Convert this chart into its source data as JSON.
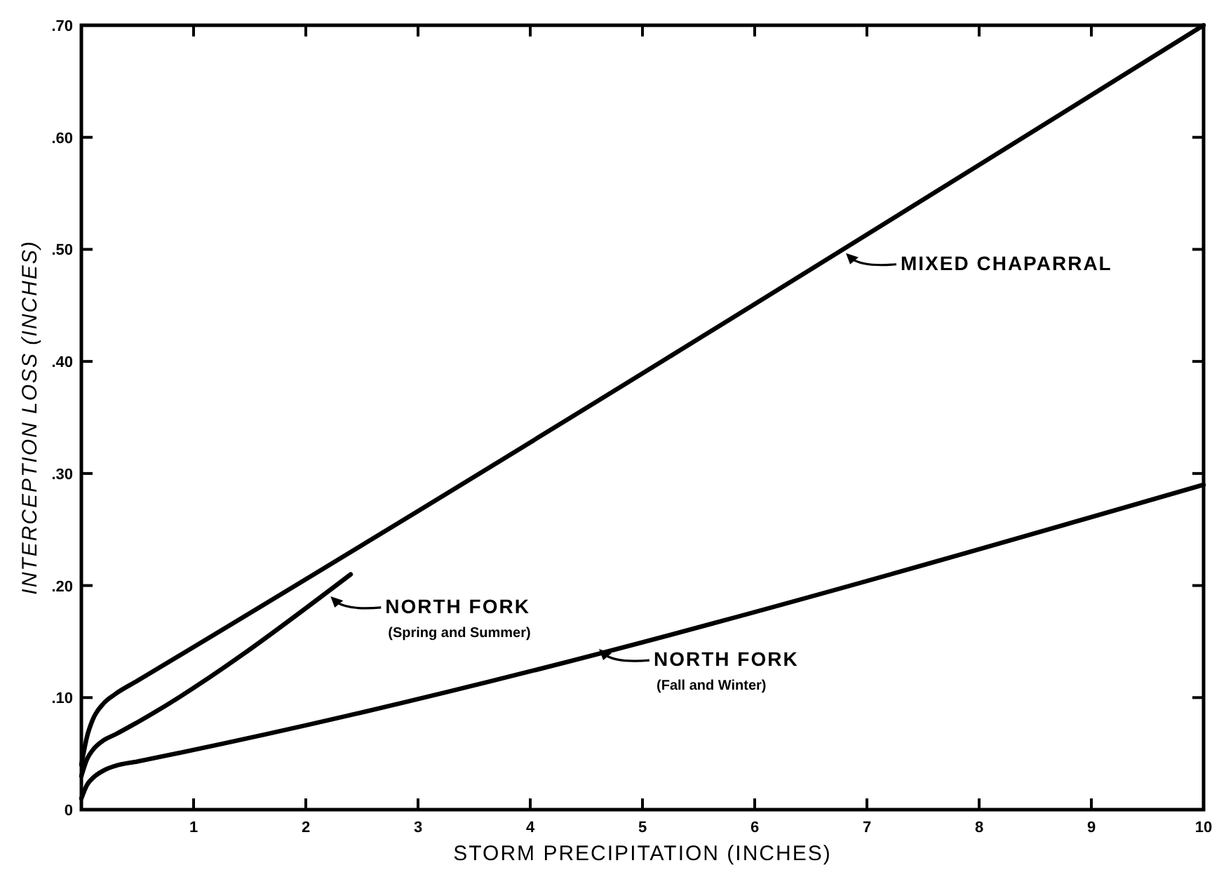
{
  "chart_data": {
    "type": "line",
    "xlabel": "STORM PRECIPITATION (INCHES)",
    "ylabel": "INTERCEPTION LOSS (INCHES)",
    "xlim": [
      0,
      10
    ],
    "ylim": [
      0,
      0.7
    ],
    "xticks": [
      1,
      2,
      3,
      4,
      5,
      6,
      7,
      8,
      9,
      10
    ],
    "yticks": [
      {
        "value": 0,
        "label": "0"
      },
      {
        "value": 0.1,
        "label": ".10"
      },
      {
        "value": 0.2,
        "label": ".20"
      },
      {
        "value": 0.3,
        "label": ".30"
      },
      {
        "value": 0.4,
        "label": ".40"
      },
      {
        "value": 0.5,
        "label": ".50"
      },
      {
        "value": 0.6,
        "label": ".60"
      },
      {
        "value": 0.7,
        "label": ".70"
      }
    ],
    "grid": false,
    "legend": "right",
    "line_style": "solid",
    "series": [
      {
        "name": "MIXED CHAPARRAL",
        "color": "#000000",
        "x": [
          0,
          0.05,
          0.1,
          0.2,
          0.3,
          0.5,
          10
        ],
        "values": [
          0.04,
          0.065,
          0.08,
          0.095,
          0.103,
          0.115,
          0.7
        ]
      },
      {
        "name": "NORTH FORK (Spring and Summer)",
        "color": "#000000",
        "x": [
          0,
          0.05,
          0.1,
          0.2,
          0.3,
          0.5,
          2.4
        ],
        "values": [
          0.03,
          0.045,
          0.053,
          0.062,
          0.067,
          0.078,
          0.21
        ]
      },
      {
        "name": "NORTH FORK (Fall and Winter)",
        "color": "#000000",
        "x": [
          0,
          0.05,
          0.1,
          0.2,
          0.3,
          0.5,
          10
        ],
        "values": [
          0.01,
          0.022,
          0.028,
          0.035,
          0.039,
          0.043,
          0.29
        ]
      }
    ]
  }
}
